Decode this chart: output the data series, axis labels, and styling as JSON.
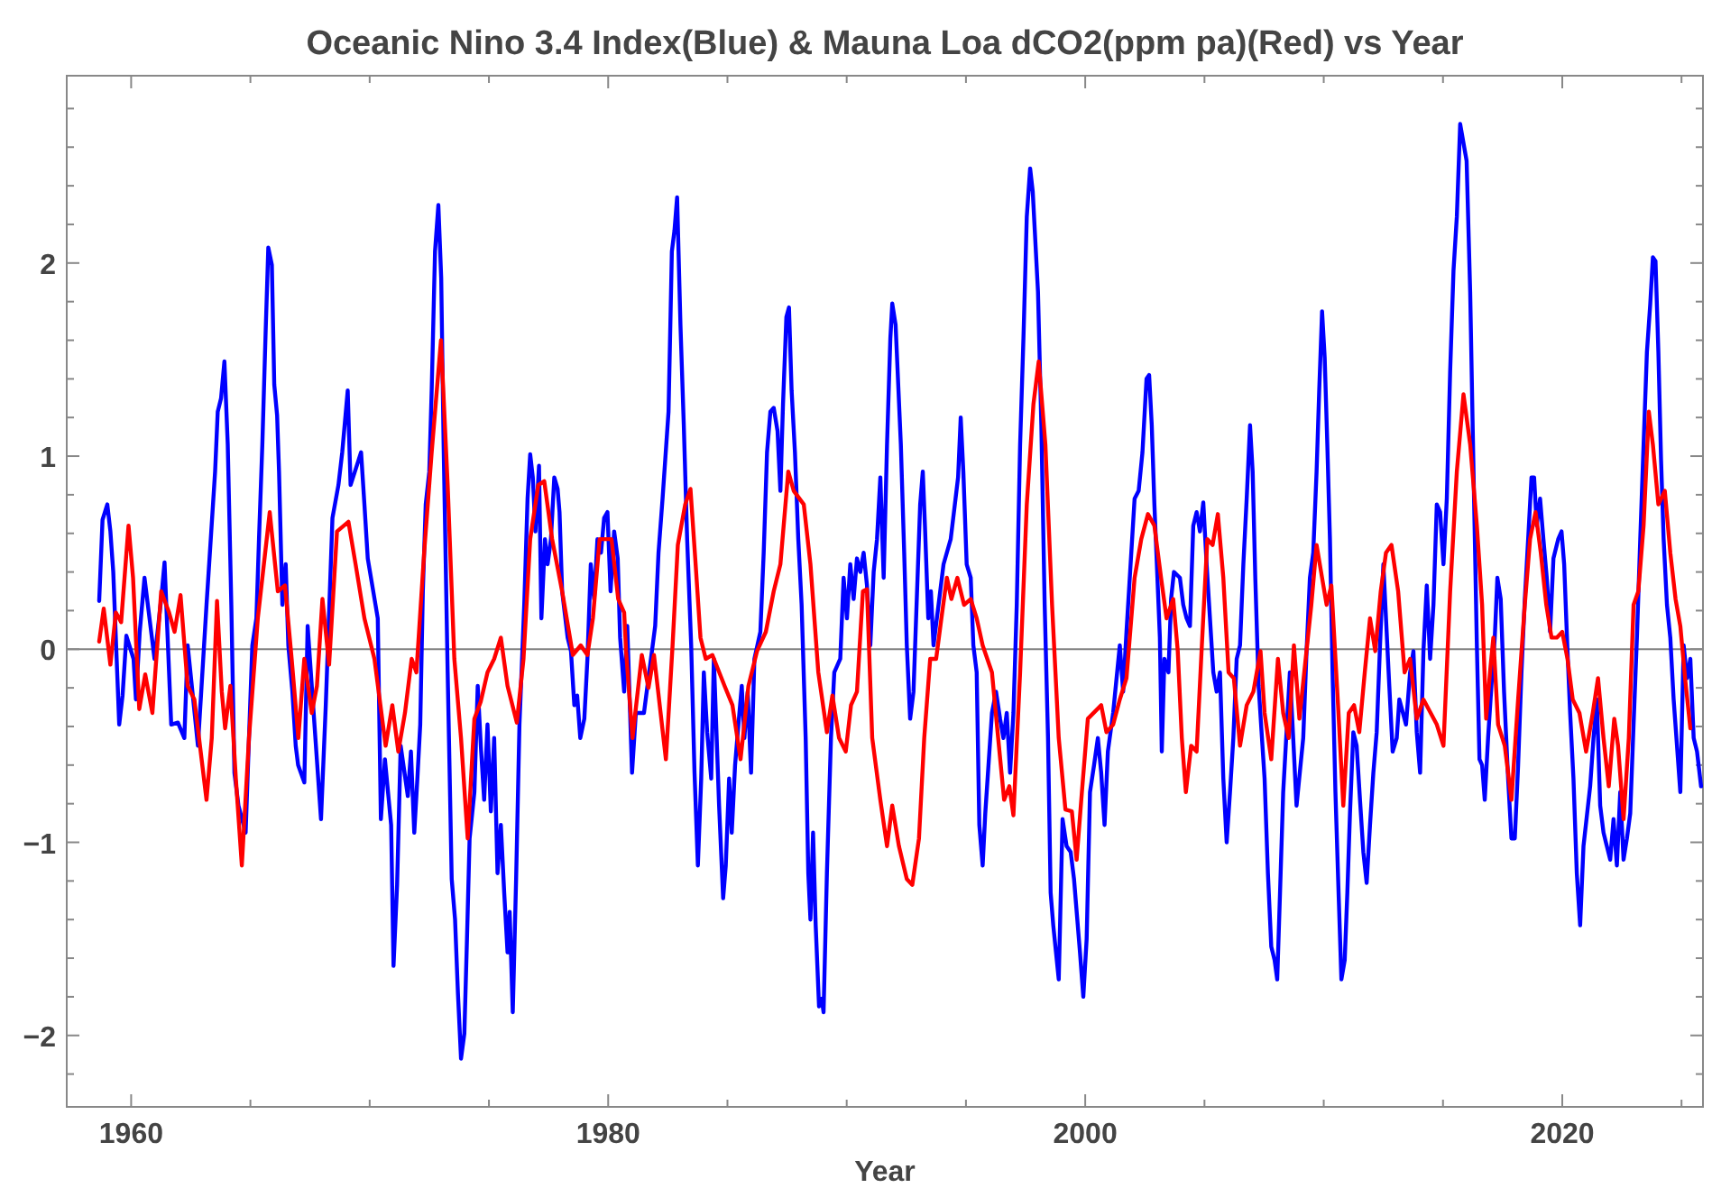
{
  "chart_data": {
    "type": "line",
    "title": "Oceanic Nino 3.4 Index(Blue) & Mauna Loa dCO2(ppm pa)(Red) vs Year",
    "xlabel": "Year",
    "xlim": [
      1957.3,
      2025.9
    ],
    "ylim": [
      -2.37,
      2.97
    ],
    "xticks": [
      1960,
      {
        "value": 1965,
        "label": null
      },
      {
        "value": 1970,
        "label": null
      },
      {
        "value": 1975,
        "label": null
      },
      1980,
      {
        "value": 1985,
        "label": null
      },
      {
        "value": 1990,
        "label": null
      },
      {
        "value": 1995,
        "label": null
      },
      2000,
      {
        "value": 2005,
        "label": null
      },
      {
        "value": 2010,
        "label": null
      },
      {
        "value": 2015,
        "label": null
      },
      2020,
      {
        "value": 2025,
        "label": null
      }
    ],
    "yticks": [
      {
        "value": -2.2,
        "label": null
      },
      -2,
      {
        "value": -1.8,
        "label": null
      },
      {
        "value": -1.6,
        "label": null
      },
      {
        "value": -1.4,
        "label": null
      },
      {
        "value": -1.2,
        "label": null
      },
      -1,
      {
        "value": -0.8,
        "label": null
      },
      {
        "value": -0.6,
        "label": null
      },
      {
        "value": -0.4,
        "label": null
      },
      {
        "value": -0.2,
        "label": null
      },
      0,
      {
        "value": 0.2,
        "label": null
      },
      {
        "value": 0.4,
        "label": null
      },
      {
        "value": 0.6,
        "label": null
      },
      {
        "value": 0.8,
        "label": null
      },
      1,
      {
        "value": 1.2,
        "label": null
      },
      {
        "value": 1.4,
        "label": null
      },
      {
        "value": 1.6,
        "label": null
      },
      {
        "value": 1.8,
        "label": null
      },
      2,
      {
        "value": 2.2,
        "label": null
      },
      {
        "value": 2.4,
        "label": null
      },
      {
        "value": 2.6,
        "label": null
      },
      {
        "value": 2.8,
        "label": null
      }
    ],
    "grid": false,
    "marker": "none",
    "line_style": "solid",
    "ref_lines": [
      {
        "axis": "y",
        "value": 0,
        "color": "#808080"
      }
    ],
    "series": [
      {
        "color": "#0000ff",
        "x": [
          1958.66,
          1958.8,
          1959.0,
          1959.13,
          1959.25,
          1959.5,
          1959.64,
          1959.8,
          1960.1,
          1960.2,
          1960.36,
          1960.56,
          1960.98,
          1961.26,
          1961.4,
          1961.68,
          1961.96,
          1962.23,
          1962.37,
          1962.8,
          1963.16,
          1963.27,
          1963.52,
          1963.63,
          1963.77,
          1963.91,
          1964.05,
          1964.2,
          1964.33,
          1964.5,
          1964.8,
          1964.94,
          1965.08,
          1965.25,
          1965.36,
          1965.5,
          1965.64,
          1965.75,
          1965.9,
          1966.0,
          1966.12,
          1966.2,
          1966.34,
          1966.48,
          1966.59,
          1966.76,
          1966.9,
          1967.0,
          1967.26,
          1967.4,
          1967.96,
          1968.16,
          1968.44,
          1968.69,
          1968.85,
          1969.08,
          1969.2,
          1969.64,
          1969.78,
          1969.92,
          1970.34,
          1970.47,
          1970.64,
          1970.9,
          1971.0,
          1971.15,
          1971.3,
          1971.6,
          1971.73,
          1971.87,
          1972.0,
          1972.12,
          1972.23,
          1972.35,
          1972.5,
          1972.6,
          1972.74,
          1972.88,
          1973.0,
          1973.1,
          1973.27,
          1973.44,
          1973.58,
          1973.7,
          1973.83,
          1973.97,
          1974.08,
          1974.19,
          1974.39,
          1974.53,
          1974.66,
          1974.8,
          1974.94,
          1975.08,
          1975.22,
          1975.36,
          1975.5,
          1975.64,
          1975.78,
          1975.87,
          1976.0,
          1976.14,
          1976.28,
          1976.48,
          1976.62,
          1976.73,
          1976.84,
          1976.95,
          1977.1,
          1977.2,
          1977.35,
          1977.46,
          1977.6,
          1977.74,
          1977.88,
          1977.96,
          1978.07,
          1978.3,
          1978.44,
          1978.58,
          1978.7,
          1978.83,
          1979.0,
          1979.13,
          1979.27,
          1979.41,
          1979.55,
          1979.7,
          1979.83,
          1979.97,
          1980.1,
          1980.25,
          1980.4,
          1980.5,
          1980.67,
          1980.8,
          1981.0,
          1981.16,
          1981.5,
          1981.97,
          1982.11,
          1982.28,
          1982.53,
          1982.67,
          1982.78,
          1982.89,
          1983.03,
          1983.17,
          1983.31,
          1983.48,
          1983.62,
          1983.76,
          1983.9,
          1984.01,
          1984.15,
          1984.32,
          1984.43,
          1984.65,
          1984.82,
          1984.93,
          1985.07,
          1985.18,
          1985.32,
          1985.46,
          1985.6,
          1985.71,
          1985.85,
          1985.99,
          1986.13,
          1986.38,
          1986.52,
          1986.66,
          1986.8,
          1986.94,
          1987.1,
          1987.22,
          1987.33,
          1987.47,
          1987.58,
          1987.69,
          1987.83,
          1987.97,
          1988.11,
          1988.28,
          1988.39,
          1988.48,
          1988.59,
          1988.7,
          1988.84,
          1988.95,
          1989.03,
          1989.17,
          1989.34,
          1989.48,
          1989.73,
          1989.87,
          1990.01,
          1990.15,
          1990.29,
          1990.43,
          1990.57,
          1990.71,
          1990.85,
          1990.99,
          1991.13,
          1991.27,
          1991.41,
          1991.55,
          1991.69,
          1991.83,
          1991.91,
          1992.05,
          1992.16,
          1992.27,
          1992.41,
          1992.52,
          1992.66,
          1992.8,
          1992.97,
          1993.08,
          1993.19,
          1993.28,
          1993.42,
          1993.53,
          1993.64,
          1993.92,
          1994.06,
          1994.36,
          1994.67,
          1994.78,
          1994.89,
          1995.03,
          1995.2,
          1995.31,
          1995.45,
          1995.56,
          1995.7,
          1995.81,
          1996.09,
          1996.26,
          1996.43,
          1996.57,
          1996.71,
          1996.85,
          1996.99,
          1997.13,
          1997.27,
          1997.41,
          1997.55,
          1997.69,
          1997.8,
          1998.02,
          1998.16,
          1998.3,
          1998.44,
          1998.55,
          1998.66,
          1998.89,
          1999.05,
          1999.22,
          1999.39,
          1999.53,
          1999.78,
          1999.92,
          2000.06,
          2000.2,
          2000.37,
          2000.53,
          2000.67,
          2000.81,
          2000.95,
          2001.17,
          2001.45,
          2001.59,
          2001.73,
          2002.07,
          2002.24,
          2002.4,
          2002.57,
          2002.68,
          2002.79,
          2002.9,
          2003.13,
          2003.21,
          2003.32,
          2003.49,
          2003.6,
          2003.72,
          2003.97,
          2004.11,
          2004.25,
          2004.39,
          2004.53,
          2004.67,
          2004.81,
          2004.95,
          2005.09,
          2005.37,
          2005.51,
          2005.65,
          2005.79,
          2005.93,
          2006.07,
          2006.21,
          2006.35,
          2006.49,
          2006.63,
          2006.77,
          2006.91,
          2007.02,
          2007.13,
          2007.27,
          2007.41,
          2007.52,
          2007.66,
          2007.8,
          2007.94,
          2008.05,
          2008.16,
          2008.3,
          2008.44,
          2008.58,
          2008.72,
          2008.86,
          2009.14,
          2009.28,
          2009.42,
          2009.56,
          2009.7,
          2009.81,
          2009.93,
          2010.04,
          2010.15,
          2010.26,
          2010.37,
          2010.49,
          2010.63,
          2010.74,
          2010.88,
          2010.99,
          2011.1,
          2011.24,
          2011.38,
          2011.52,
          2011.66,
          2011.8,
          2011.94,
          2012.08,
          2012.22,
          2012.36,
          2012.5,
          2012.72,
          2012.89,
          2013.06,
          2013.17,
          2013.45,
          2013.62,
          2013.76,
          2013.9,
          2014.04,
          2014.18,
          2014.32,
          2014.46,
          2014.6,
          2014.74,
          2014.88,
          2015.02,
          2015.16,
          2015.3,
          2015.44,
          2015.58,
          2015.72,
          2015.99,
          2016.14,
          2016.28,
          2016.42,
          2016.53,
          2016.64,
          2016.75,
          2016.89,
          2017.03,
          2017.17,
          2017.28,
          2017.42,
          2017.56,
          2017.73,
          2017.87,
          2018.01,
          2018.15,
          2018.29,
          2018.43,
          2018.57,
          2018.71,
          2018.82,
          2018.93,
          2019.07,
          2019.21,
          2019.35,
          2019.49,
          2019.63,
          2019.83,
          2019.97,
          2020.08,
          2020.22,
          2020.33,
          2020.47,
          2020.61,
          2020.75,
          2020.89,
          2021.17,
          2021.31,
          2021.45,
          2021.59,
          2021.73,
          2022.01,
          2022.15,
          2022.29,
          2022.43,
          2022.57,
          2022.71,
          2022.85,
          2022.99,
          2023.13,
          2023.27,
          2023.41,
          2023.55,
          2023.69,
          2023.8,
          2023.91,
          2024.03,
          2024.14,
          2024.25,
          2024.39,
          2024.53,
          2024.67,
          2024.95,
          2025.09,
          2025.23,
          2025.37,
          2025.51,
          2025.65,
          2025.82
        ],
        "values": [
          0.25,
          0.67,
          0.75,
          0.61,
          0.4,
          -0.39,
          -0.24,
          0.07,
          -0.05,
          -0.26,
          0.09,
          0.37,
          -0.05,
          0.26,
          0.45,
          -0.39,
          -0.38,
          -0.46,
          0.02,
          -0.5,
          0.23,
          0.44,
          0.92,
          1.23,
          1.3,
          1.49,
          1.06,
          0.23,
          -0.64,
          -0.81,
          -0.95,
          -0.46,
          0.02,
          0.16,
          0.57,
          1.06,
          1.65,
          2.08,
          1.99,
          1.37,
          1.21,
          0.92,
          0.23,
          0.44,
          0.02,
          -0.22,
          -0.5,
          -0.6,
          -0.69,
          0.12,
          -0.88,
          -0.29,
          0.68,
          0.85,
          1.02,
          1.34,
          0.85,
          1.02,
          0.75,
          0.47,
          0.16,
          -0.88,
          -0.57,
          -0.91,
          -1.64,
          -1.22,
          -0.5,
          -0.76,
          -0.53,
          -0.95,
          -0.67,
          -0.39,
          0.3,
          0.75,
          0.92,
          1.34,
          2.06,
          2.3,
          1.92,
          1.06,
          -0.12,
          -1.19,
          -1.4,
          -1.78,
          -2.12,
          -1.99,
          -1.5,
          -0.98,
          -0.74,
          -0.19,
          -0.5,
          -0.78,
          -0.39,
          -0.84,
          -0.46,
          -1.16,
          -0.91,
          -1.26,
          -1.57,
          -1.36,
          -1.88,
          -1.19,
          -0.39,
          0.23,
          0.78,
          1.01,
          0.89,
          0.61,
          0.95,
          0.16,
          0.57,
          0.44,
          0.57,
          0.89,
          0.83,
          0.71,
          0.3,
          0.06,
          -0.01,
          -0.29,
          -0.24,
          -0.46,
          -0.36,
          -0.05,
          0.44,
          0.26,
          0.57,
          0.5,
          0.68,
          0.71,
          0.3,
          0.61,
          0.47,
          0.06,
          -0.22,
          0.12,
          -0.64,
          -0.33,
          -0.33,
          0.12,
          0.5,
          0.78,
          1.23,
          2.06,
          2.17,
          2.34,
          1.68,
          1.16,
          0.57,
          0.02,
          -0.64,
          -1.12,
          -0.67,
          -0.12,
          -0.43,
          -0.67,
          -0.05,
          -0.81,
          -1.29,
          -1.12,
          -0.67,
          -0.95,
          -0.6,
          -0.39,
          -0.19,
          -0.46,
          -0.22,
          -0.64,
          -0.05,
          0.09,
          0.5,
          1.02,
          1.23,
          1.25,
          1.13,
          0.82,
          1.27,
          1.72,
          1.77,
          1.34,
          1.02,
          0.57,
          0.23,
          -0.46,
          -1.16,
          -1.4,
          -0.95,
          -1.43,
          -1.85,
          -1.81,
          -1.88,
          -1.16,
          -0.46,
          -0.12,
          -0.05,
          0.37,
          0.16,
          0.44,
          0.26,
          0.47,
          0.4,
          0.5,
          0.33,
          0.02,
          0.4,
          0.57,
          0.89,
          0.37,
          1.06,
          1.61,
          1.79,
          1.68,
          1.37,
          1.06,
          0.5,
          0.02,
          -0.36,
          -0.22,
          0.37,
          0.75,
          0.92,
          0.64,
          0.16,
          0.3,
          0.02,
          0.3,
          0.44,
          0.57,
          0.89,
          1.2,
          0.92,
          0.44,
          0.37,
          0.02,
          -0.12,
          -0.91,
          -1.12,
          -0.85,
          -0.33,
          -0.22,
          -0.36,
          -0.46,
          -0.33,
          -0.64,
          -0.33,
          0.23,
          1.06,
          1.61,
          2.24,
          2.49,
          2.37,
          1.85,
          1.16,
          0.23,
          -0.46,
          -1.26,
          -1.43,
          -1.71,
          -0.88,
          -1.02,
          -1.05,
          -1.19,
          -1.57,
          -1.8,
          -1.5,
          -0.74,
          -0.6,
          -0.46,
          -0.64,
          -0.91,
          -0.53,
          -0.33,
          0.02,
          -0.22,
          0.09,
          0.78,
          0.82,
          1.02,
          1.4,
          1.42,
          1.16,
          0.75,
          0.06,
          -0.53,
          -0.05,
          -0.12,
          0.26,
          0.4,
          0.37,
          0.23,
          0.16,
          0.12,
          0.64,
          0.71,
          0.61,
          0.76,
          0.44,
          -0.12,
          -0.22,
          -0.12,
          -0.67,
          -1.0,
          -0.74,
          -0.46,
          -0.05,
          0.02,
          0.44,
          0.78,
          1.16,
          0.92,
          0.37,
          -0.19,
          -0.46,
          -0.67,
          -1.16,
          -1.54,
          -1.61,
          -1.71,
          -1.29,
          -0.74,
          -0.43,
          -0.12,
          -0.46,
          -0.81,
          -0.46,
          -0.01,
          0.37,
          0.5,
          0.92,
          1.34,
          1.75,
          1.51,
          1.06,
          0.57,
          -0.12,
          -0.74,
          -1.29,
          -1.71,
          -1.61,
          -1.26,
          -0.85,
          -0.43,
          -0.5,
          -0.78,
          -1.05,
          -1.21,
          -0.91,
          -0.64,
          -0.43,
          0.02,
          0.44,
          -0.12,
          -0.53,
          -0.46,
          -0.26,
          -0.39,
          -0.12,
          -0.01,
          -0.43,
          -0.64,
          -0.01,
          0.33,
          -0.05,
          0.23,
          0.75,
          0.71,
          0.44,
          0.78,
          1.44,
          1.96,
          2.24,
          2.72,
          2.53,
          1.85,
          0.92,
          0.02,
          -0.57,
          -0.6,
          -0.78,
          -0.46,
          -0.19,
          0.06,
          0.37,
          0.26,
          -0.22,
          -0.67,
          -0.98,
          -0.98,
          -0.6,
          -0.12,
          0.26,
          0.57,
          0.89,
          0.89,
          0.64,
          0.78,
          0.57,
          0.37,
          0.09,
          0.47,
          0.57,
          0.61,
          0.44,
          -0.01,
          -0.33,
          -0.67,
          -1.16,
          -1.43,
          -1.02,
          -0.71,
          -0.46,
          -0.26,
          -0.81,
          -0.95,
          -1.09,
          -0.88,
          -1.12,
          -0.74,
          -1.09,
          -0.98,
          -0.85,
          -0.39,
          0.06,
          0.57,
          1.06,
          1.54,
          1.79,
          2.03,
          2.01,
          1.54,
          0.99,
          0.57,
          0.23,
          0.06,
          -0.26,
          -0.74,
          0.02,
          -0.15,
          -0.05,
          -0.46,
          -0.53,
          -0.71
        ]
      },
      {
        "color": "#ff0000",
        "x": [
          1958.66,
          1958.85,
          1959.13,
          1959.36,
          1959.58,
          1959.89,
          1960.08,
          1960.34,
          1960.59,
          1960.89,
          1961.26,
          1961.59,
          1961.82,
          1962.07,
          1962.37,
          1962.65,
          1963.16,
          1963.38,
          1963.6,
          1963.8,
          1963.94,
          1964.16,
          1964.39,
          1964.64,
          1964.94,
          1965.31,
          1965.81,
          1966.15,
          1966.45,
          1966.73,
          1967.01,
          1967.26,
          1967.57,
          1967.79,
          1968.02,
          1968.3,
          1968.63,
          1969.11,
          1969.41,
          1969.78,
          1970.2,
          1970.67,
          1970.95,
          1971.2,
          1971.48,
          1971.76,
          1971.96,
          1972.29,
          1972.6,
          1972.99,
          1973.27,
          1973.55,
          1973.83,
          1974.11,
          1974.39,
          1974.66,
          1974.94,
          1975.22,
          1975.5,
          1975.78,
          1976.17,
          1976.45,
          1976.73,
          1977.07,
          1977.32,
          1977.65,
          1978.07,
          1978.52,
          1978.85,
          1979.13,
          1979.36,
          1979.64,
          1979.86,
          1980.14,
          1980.42,
          1980.67,
          1980.75,
          1981.02,
          1981.41,
          1981.69,
          1981.92,
          1982.42,
          1982.7,
          1982.92,
          1983.23,
          1983.45,
          1983.65,
          1983.87,
          1984.09,
          1984.37,
          1984.88,
          1985.21,
          1985.55,
          1985.88,
          1986.24,
          1986.61,
          1986.94,
          1987.22,
          1987.55,
          1987.78,
          1988.2,
          1988.48,
          1988.81,
          1989.17,
          1989.4,
          1989.68,
          1989.96,
          1990.18,
          1990.43,
          1990.68,
          1990.85,
          1991.07,
          1991.41,
          1991.69,
          1991.91,
          1992.19,
          1992.52,
          1992.75,
          1993.03,
          1993.25,
          1993.5,
          1993.75,
          1993.97,
          1994.2,
          1994.39,
          1994.64,
          1994.92,
          1995.2,
          1995.45,
          1995.7,
          1996.09,
          1996.35,
          1996.6,
          1996.82,
          1996.99,
          1997.27,
          1997.55,
          1997.83,
          1998.05,
          1998.33,
          1998.61,
          1998.89,
          1999.17,
          1999.44,
          1999.64,
          1999.86,
          2000.11,
          2000.67,
          2000.89,
          2001.17,
          2001.45,
          2001.73,
          2002.07,
          2002.35,
          2002.63,
          2002.9,
          2003.18,
          2003.41,
          2003.69,
          2003.88,
          2004.05,
          2004.22,
          2004.44,
          2004.67,
          2004.89,
          2005.12,
          2005.34,
          2005.56,
          2005.79,
          2006.01,
          2006.23,
          2006.49,
          2006.77,
          2007.05,
          2007.35,
          2007.52,
          2007.8,
          2008.08,
          2008.3,
          2008.53,
          2008.75,
          2008.98,
          2009.48,
          2009.7,
          2009.93,
          2010.12,
          2010.32,
          2010.6,
          2010.82,
          2011.05,
          2011.27,
          2011.49,
          2011.72,
          2011.94,
          2012.16,
          2012.39,
          2012.61,
          2012.84,
          2013.12,
          2013.39,
          2013.62,
          2013.9,
          2014.18,
          2014.74,
          2015.02,
          2015.3,
          2015.58,
          2015.86,
          2016.14,
          2016.42,
          2016.64,
          2016.81,
          2016.97,
          2017.11,
          2017.31,
          2017.59,
          2017.87,
          2018.15,
          2018.43,
          2018.65,
          2018.88,
          2019.1,
          2019.33,
          2019.55,
          2019.77,
          2020.0,
          2020.22,
          2020.44,
          2020.72,
          2021.0,
          2021.28,
          2021.5,
          2021.73,
          2021.95,
          2022.18,
          2022.34,
          2022.57,
          2022.79,
          2022.99,
          2023.19,
          2023.41,
          2023.63,
          2023.8,
          2024.03,
          2024.3,
          2024.53,
          2024.75,
          2024.95,
          2025.15,
          2025.37
        ],
        "values": [
          0.04,
          0.21,
          -0.08,
          0.19,
          0.14,
          0.64,
          0.37,
          -0.31,
          -0.13,
          -0.33,
          0.3,
          0.19,
          0.09,
          0.28,
          -0.19,
          -0.26,
          -0.78,
          -0.46,
          0.25,
          -0.22,
          -0.41,
          -0.19,
          -0.67,
          -1.12,
          -0.46,
          0.16,
          0.71,
          0.3,
          0.33,
          -0.05,
          -0.46,
          -0.05,
          -0.33,
          -0.19,
          0.26,
          -0.08,
          0.61,
          0.66,
          0.44,
          0.16,
          -0.05,
          -0.5,
          -0.29,
          -0.53,
          -0.33,
          -0.05,
          -0.12,
          0.51,
          1.02,
          1.6,
          0.85,
          -0.05,
          -0.46,
          -0.98,
          -0.36,
          -0.27,
          -0.12,
          -0.05,
          0.06,
          -0.19,
          -0.38,
          -0.05,
          0.57,
          0.85,
          0.87,
          0.57,
          0.3,
          -0.03,
          0.02,
          -0.03,
          0.16,
          0.57,
          0.57,
          0.57,
          0.26,
          0.19,
          -0.01,
          -0.46,
          -0.03,
          -0.2,
          -0.03,
          -0.57,
          0.02,
          0.54,
          0.75,
          0.83,
          0.47,
          0.06,
          -0.05,
          -0.03,
          -0.19,
          -0.29,
          -0.57,
          -0.19,
          -0.01,
          0.09,
          0.3,
          0.44,
          0.92,
          0.82,
          0.75,
          0.44,
          -0.12,
          -0.43,
          -0.24,
          -0.46,
          -0.53,
          -0.29,
          -0.22,
          0.3,
          0.31,
          -0.46,
          -0.78,
          -1.02,
          -0.81,
          -1.02,
          -1.19,
          -1.22,
          -0.98,
          -0.46,
          -0.05,
          -0.05,
          0.16,
          0.37,
          0.26,
          0.37,
          0.23,
          0.26,
          0.16,
          0.02,
          -0.12,
          -0.46,
          -0.78,
          -0.71,
          -0.86,
          -0.12,
          0.75,
          1.27,
          1.49,
          1.06,
          0.23,
          -0.46,
          -0.83,
          -0.84,
          -1.09,
          -0.74,
          -0.36,
          -0.29,
          -0.43,
          -0.39,
          -0.26,
          -0.15,
          0.37,
          0.57,
          0.7,
          0.64,
          0.37,
          0.16,
          0.26,
          -0.01,
          -0.46,
          -0.74,
          -0.5,
          -0.53,
          0.02,
          0.57,
          0.54,
          0.7,
          0.37,
          -0.12,
          -0.15,
          -0.5,
          -0.29,
          -0.22,
          -0.01,
          -0.33,
          -0.57,
          -0.05,
          -0.33,
          -0.46,
          0.02,
          -0.36,
          0.23,
          0.54,
          0.37,
          0.23,
          0.33,
          -0.29,
          -0.81,
          -0.33,
          -0.29,
          -0.43,
          -0.12,
          0.16,
          -0.01,
          0.3,
          0.5,
          0.54,
          0.3,
          -0.12,
          -0.05,
          -0.36,
          -0.26,
          -0.39,
          -0.5,
          0.3,
          0.92,
          1.32,
          1.06,
          0.64,
          0.23,
          -0.36,
          -0.12,
          0.06,
          -0.39,
          -0.5,
          -0.78,
          -0.26,
          0.23,
          0.57,
          0.71,
          0.5,
          0.23,
          0.06,
          0.06,
          0.09,
          -0.05,
          -0.26,
          -0.33,
          -0.53,
          -0.33,
          -0.15,
          -0.46,
          -0.71,
          -0.36,
          -0.5,
          -0.88,
          -0.46,
          0.23,
          0.3,
          0.64,
          1.23,
          1.06,
          0.75,
          0.82,
          0.5,
          0.26,
          0.12,
          -0.15,
          -0.41
        ]
      }
    ]
  }
}
